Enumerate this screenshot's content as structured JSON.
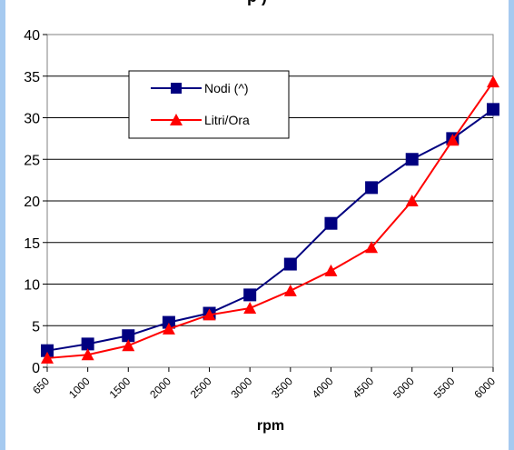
{
  "header": {
    "title_fragment": "p                    )"
  },
  "chart_data": {
    "type": "line",
    "categories": [
      "650",
      "1000",
      "1500",
      "2000",
      "2500",
      "3000",
      "3500",
      "4000",
      "4500",
      "5000",
      "5500",
      "6000"
    ],
    "series": [
      {
        "name": "Nodi (^)",
        "color": "#000080",
        "marker": "square",
        "values": [
          2.0,
          2.8,
          3.8,
          5.4,
          6.5,
          8.7,
          12.4,
          17.3,
          21.6,
          25.0,
          27.5,
          31.0
        ]
      },
      {
        "name": "Litri/Ora",
        "color": "#ff0000",
        "marker": "triangle",
        "values": [
          1.1,
          1.5,
          2.6,
          4.6,
          6.3,
          7.1,
          9.2,
          11.6,
          14.4,
          20.0,
          27.3,
          34.3
        ]
      }
    ],
    "title": "",
    "xlabel": "rpm",
    "ylabel": "",
    "ylim": [
      0,
      40
    ],
    "yticks": [
      0,
      5,
      10,
      15,
      20,
      25,
      30,
      35,
      40
    ],
    "grid": true,
    "legend_position": "top-left"
  }
}
